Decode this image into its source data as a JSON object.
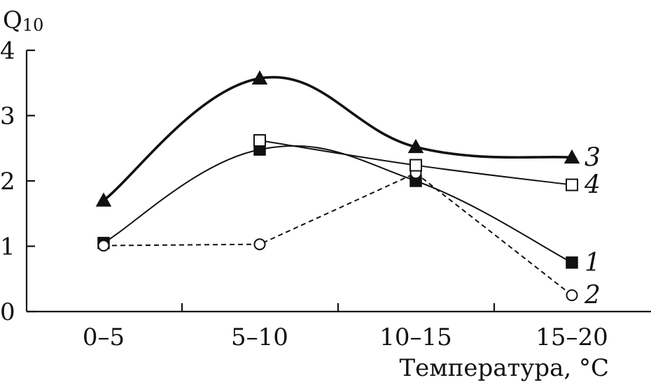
{
  "chart_data": {
    "type": "line",
    "categories": [
      "0–5",
      "5–10",
      "10–15",
      "15–20"
    ],
    "ylabel_main": "Q",
    "ylabel_sub": "10",
    "xlabel": "Температура, °C",
    "ylim": [
      0,
      4
    ],
    "yticks": [
      "0",
      "1",
      "2",
      "3",
      "4"
    ],
    "grid": false,
    "series": [
      {
        "name": "1",
        "marker": "square-filled",
        "line": "thin-solid",
        "values": [
          1.05,
          2.48,
          2.0,
          0.75
        ]
      },
      {
        "name": "2",
        "marker": "circle-open",
        "line": "dashed",
        "values": [
          1.01,
          1.03,
          2.12,
          0.25
        ]
      },
      {
        "name": "3",
        "marker": "triangle-filled",
        "line": "thick-solid",
        "values": [
          1.7,
          3.57,
          2.52,
          2.36
        ]
      },
      {
        "name": "4",
        "marker": "square-open",
        "line": "thin-solid",
        "values": [
          null,
          2.62,
          2.24,
          1.94
        ]
      }
    ]
  }
}
